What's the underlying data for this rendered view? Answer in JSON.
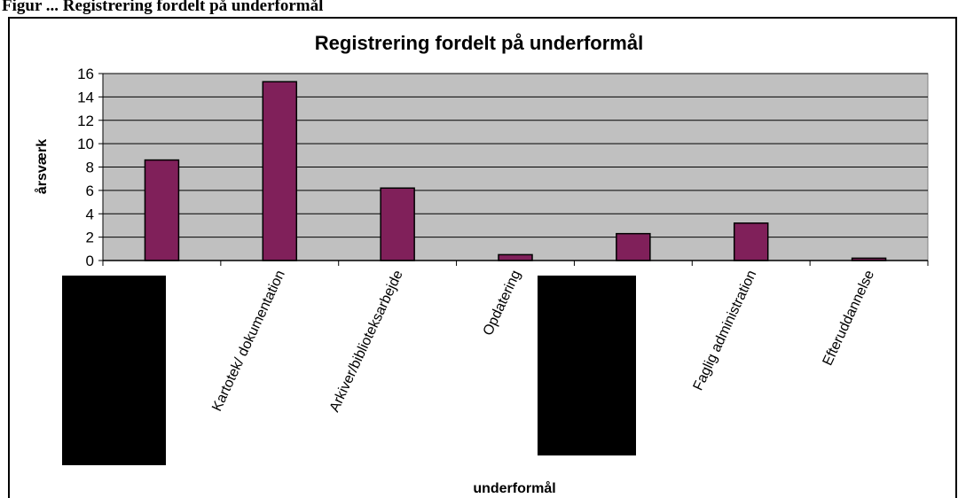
{
  "caption": "Figur ... Registrering fordelt på underformål",
  "chart_data": {
    "type": "bar",
    "title": "Registrering fordelt på underformål",
    "xlabel": "underformål",
    "ylabel": "årsværk",
    "ylim": [
      0,
      16
    ],
    "yticks": [
      0,
      2,
      4,
      6,
      8,
      10,
      12,
      14,
      16
    ],
    "categories": [
      "",
      "Kartotek/ dokumentation",
      "Arkiver/biblioteksarbejde",
      "Opdatering",
      "",
      "Faglig administration",
      "Efteruddannelse"
    ],
    "values": [
      8.6,
      15.3,
      6.2,
      0.5,
      2.3,
      3.2,
      0.2
    ],
    "bar_color": "#80205a",
    "plot_background": "#c0c0c0",
    "grid": true,
    "legend": "none"
  }
}
